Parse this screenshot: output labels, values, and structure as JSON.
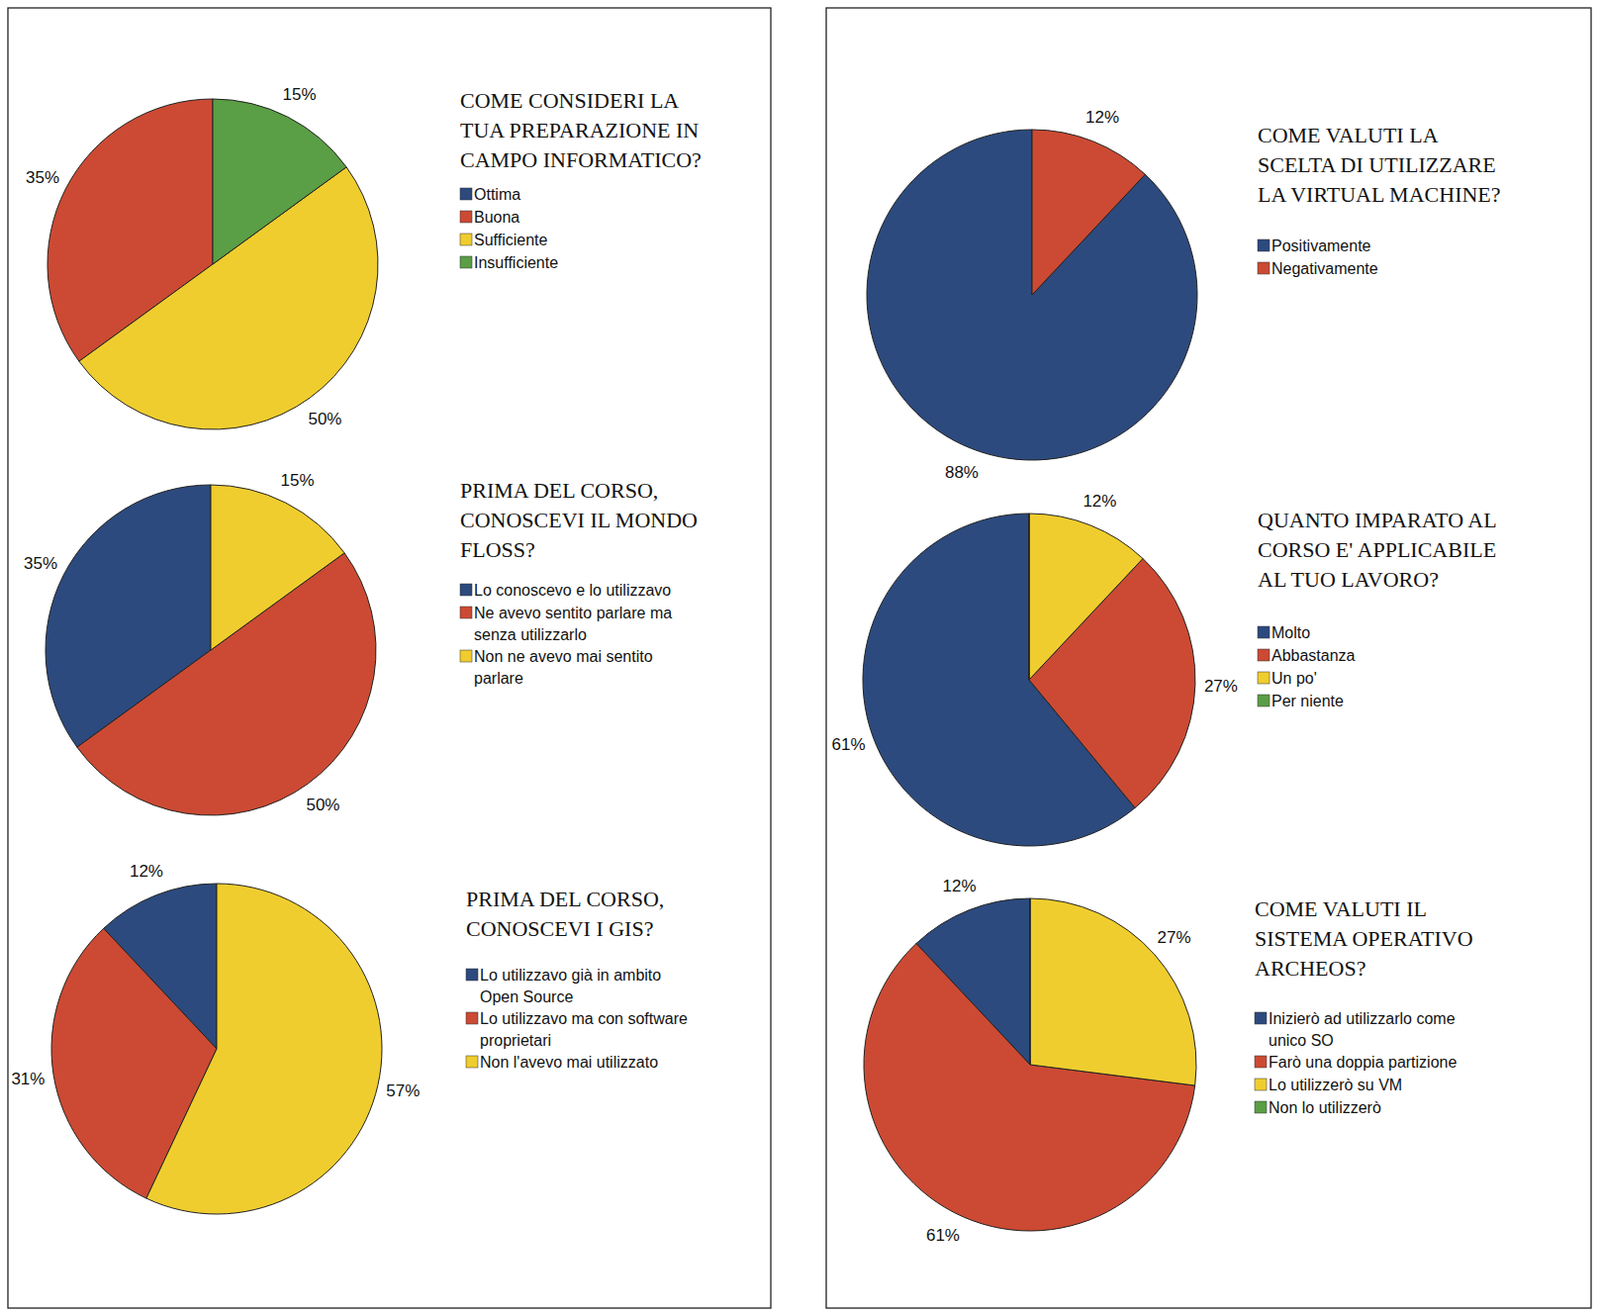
{
  "chart_data": [
    {
      "type": "pie",
      "title": [
        "COME CONSIDERI LA",
        "TUA PREPARAZIONE IN",
        "CAMPO INFORMATICO?"
      ],
      "categories": [
        "Ottima",
        "Buona",
        "Sufficiente",
        "Insufficiente"
      ],
      "values": [
        0,
        35,
        50,
        15
      ],
      "value_labels": [
        null,
        "35%",
        "50%",
        "15%"
      ],
      "colors": [
        "#2c4a7e",
        "#cc4a33",
        "#f0cd2e",
        "#5a9e45"
      ],
      "data_labels": true,
      "legend": "right"
    },
    {
      "type": "pie",
      "title": [
        "PRIMA DEL CORSO,",
        "CONOSCEVI IL MONDO",
        "FLOSS?"
      ],
      "categories": [
        "Lo conoscevo e lo utilizzavo",
        "Ne avevo sentito parlare ma senza utilizzarlo",
        "Non ne avevo mai sentito parlare"
      ],
      "values": [
        35,
        50,
        15
      ],
      "value_labels": [
        "35%",
        "50%",
        "15%"
      ],
      "colors": [
        "#2c4a7e",
        "#cc4a33",
        "#f0cd2e"
      ],
      "data_labels": true,
      "legend": "right"
    },
    {
      "type": "pie",
      "title": [
        "PRIMA DEL CORSO,",
        "CONOSCEVI I GIS?"
      ],
      "categories": [
        "Lo utilizzavo già in ambito Open Source",
        "Lo utilizzavo ma con software proprietari",
        "Non l'avevo mai utilizzato"
      ],
      "values": [
        12,
        31,
        57
      ],
      "value_labels": [
        "12%",
        "31%",
        "57%"
      ],
      "colors": [
        "#2c4a7e",
        "#cc4a33",
        "#f0cd2e"
      ],
      "data_labels": true,
      "legend": "right"
    },
    {
      "type": "pie",
      "title": [
        "COME VALUTI LA",
        "SCELTA DI UTILIZZARE",
        "LA VIRTUAL MACHINE?"
      ],
      "categories": [
        "Positivamente",
        "Negativamente"
      ],
      "values": [
        88,
        12
      ],
      "value_labels": [
        "88%",
        "12%"
      ],
      "colors": [
        "#2c4a7e",
        "#cc4a33"
      ],
      "data_labels": true,
      "legend": "right"
    },
    {
      "type": "pie",
      "title": [
        "QUANTO IMPARATO AL",
        "CORSO E' APPLICABILE",
        "AL TUO LAVORO?"
      ],
      "categories": [
        "Molto",
        "Abbastanza",
        "Un po'",
        "Per niente"
      ],
      "values": [
        61,
        27,
        12,
        0
      ],
      "value_labels": [
        "61%",
        "27%",
        "12%",
        null
      ],
      "colors": [
        "#2c4a7e",
        "#cc4a33",
        "#f0cd2e",
        "#5a9e45"
      ],
      "data_labels": true,
      "legend": "right"
    },
    {
      "type": "pie",
      "title": [
        "COME VALUTI IL",
        "SISTEMA OPERATIVO",
        "ARCHEOS?"
      ],
      "categories": [
        "Inizierò ad utilizzarlo come unico SO",
        "Farò una doppia partizione",
        "Lo utilizzerò su VM",
        "Non lo utilizzerò"
      ],
      "values": [
        12,
        61,
        27,
        0
      ],
      "value_labels": [
        "12%",
        "61%",
        "27%",
        null
      ],
      "colors": [
        "#2c4a7e",
        "#cc4a33",
        "#f0cd2e",
        "#5a9e45"
      ],
      "data_labels": true,
      "legend": "right"
    }
  ]
}
